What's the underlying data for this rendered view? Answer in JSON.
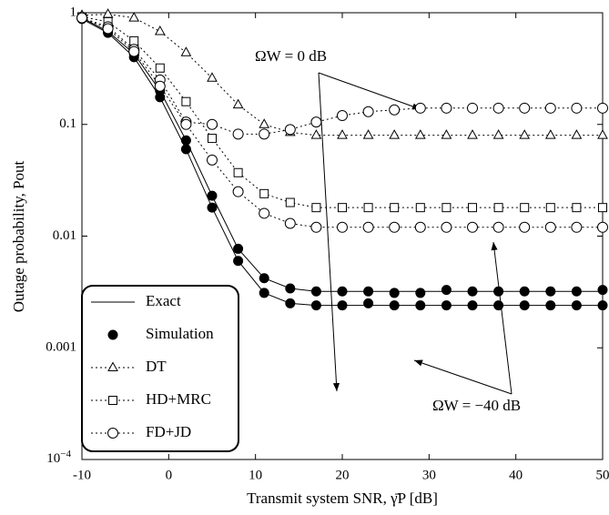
{
  "chart_data": {
    "type": "line",
    "x_label": "Transmit system SNR, γ̄P [dB]",
    "y_label": "Outage probability, Pout",
    "log_y": true,
    "xlim": [
      -10,
      50
    ],
    "xticks": [
      -10,
      0,
      10,
      20,
      30,
      40,
      50
    ],
    "ylim": [
      0.0001,
      1
    ],
    "yticks": [
      {
        "value": 0.0001,
        "label": "10",
        "exponent": "−4"
      },
      0.001,
      0.01,
      0.1,
      1
    ],
    "x": [
      -10,
      -7,
      -4,
      -1,
      2,
      5,
      8,
      11,
      14,
      17,
      20,
      23,
      26,
      29,
      32,
      35,
      38,
      41,
      44,
      47,
      50
    ],
    "series": [
      {
        "name": "Exact",
        "color": "#000000",
        "style": "line",
        "marker": "none",
        "curves": [
          {
            "values": [
              0.9,
              0.68,
              0.43,
              0.2,
              0.072,
              0.023,
              0.0077,
              0.0042,
              0.0034,
              0.0032,
              0.0032,
              0.0032,
              0.0032,
              0.0032,
              0.0032,
              0.0032,
              0.0032,
              0.0032,
              0.0032,
              0.0032,
              0.0032
            ]
          },
          {
            "values": [
              0.88,
              0.66,
              0.4,
              0.175,
              0.06,
              0.018,
              0.006,
              0.0031,
              0.0025,
              0.0024,
              0.0024,
              0.0024,
              0.0024,
              0.0024,
              0.0024,
              0.0024,
              0.0024,
              0.0024,
              0.0024,
              0.0024,
              0.0024
            ]
          }
        ]
      },
      {
        "name": "Simulation",
        "color": "#000000",
        "style": "markers",
        "marker": "dot",
        "curves": [
          {
            "values": [
              0.9,
              0.68,
              0.43,
              0.2,
              0.072,
              0.023,
              0.0077,
              0.0042,
              0.0034,
              0.0032,
              0.0032,
              0.0032,
              0.0031,
              0.0031,
              0.0033,
              0.0032,
              0.0032,
              0.0032,
              0.0032,
              0.0032,
              0.0033
            ]
          },
          {
            "values": [
              0.88,
              0.66,
              0.4,
              0.175,
              0.06,
              0.018,
              0.006,
              0.0031,
              0.0025,
              0.0024,
              0.0024,
              0.0025,
              0.0024,
              0.0024,
              0.0024,
              0.0024,
              0.0024,
              0.0024,
              0.0024,
              0.0024,
              0.0024
            ]
          }
        ]
      },
      {
        "name": "DT",
        "color": "#000000",
        "style": "dotted",
        "marker": "triangle",
        "curves": [
          {
            "values": [
              0.95,
              0.97,
              0.9,
              0.68,
              0.44,
              0.26,
              0.15,
              0.1,
              0.085,
              0.08,
              0.08,
              0.08,
              0.08,
              0.08,
              0.08,
              0.08,
              0.08,
              0.08,
              0.08,
              0.08,
              0.08
            ]
          }
        ]
      },
      {
        "name": "HD+MRC",
        "color": "#000000",
        "style": "dotted",
        "marker": "square",
        "curves": [
          {
            "values": [
              0.92,
              0.83,
              0.56,
              0.32,
              0.16,
              0.075,
              0.037,
              0.024,
              0.02,
              0.018,
              0.018,
              0.018,
              0.018,
              0.018,
              0.018,
              0.018,
              0.018,
              0.018,
              0.018,
              0.018,
              0.018
            ]
          }
        ]
      },
      {
        "name": "FD+JD",
        "color": "#000000",
        "style": "dotted",
        "marker": "circle",
        "curves": [
          {
            "values": [
              0.9,
              0.75,
              0.47,
              0.25,
              0.105,
              0.1,
              0.082,
              0.082,
              0.09,
              0.105,
              0.12,
              0.13,
              0.135,
              0.14,
              0.14,
              0.14,
              0.14,
              0.14,
              0.14,
              0.14,
              0.14
            ]
          },
          {
            "values": [
              0.9,
              0.72,
              0.45,
              0.22,
              0.1,
              0.048,
              0.025,
              0.016,
              0.013,
              0.012,
              0.012,
              0.012,
              0.012,
              0.012,
              0.012,
              0.012,
              0.012,
              0.012,
              0.012,
              0.012,
              0.012
            ]
          }
        ]
      }
    ],
    "annotations": [
      "ΩW = 0 dB",
      "ΩW = −40 dB"
    ]
  }
}
